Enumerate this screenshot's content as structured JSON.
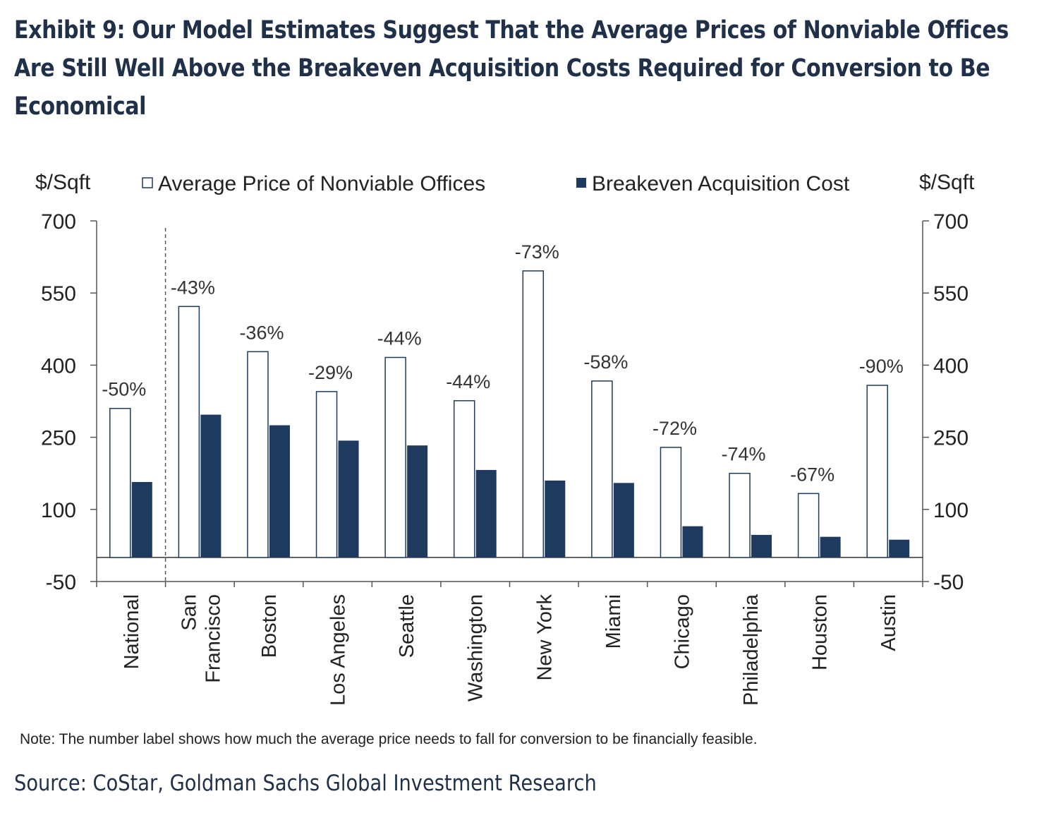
{
  "title_lines": [
    "Exhibit 9: Our Model Estimates Suggest That the Average Prices of Nonviable Offices",
    "Are Still Well Above the Breakeven Acquisition Costs Required for Conversion to Be",
    "Economical"
  ],
  "note": "Note: The number label shows how much the average price needs to fall for conversion to be financially feasible.",
  "source": "Source: CoStar, Goldman Sachs Global Investment Research",
  "colors": {
    "title": "#1f3048",
    "breakeven_bar": "#1f3a5f",
    "average_bar_fill": "#ffffff",
    "average_bar_stroke": "#1f3a5f"
  },
  "chart_data": {
    "type": "bar",
    "y_unit_left": "$/Sqft",
    "y_unit_right": "$/Sqft",
    "ylim": [
      -50,
      700
    ],
    "yticks": [
      -50,
      100,
      250,
      400,
      550,
      700
    ],
    "legend_position": "top",
    "categories": [
      "National",
      "San\nFrancisco",
      "Boston",
      "Los Angeles",
      "Seattle",
      "Washington",
      "New York",
      "Miami",
      "Chicago",
      "Philadelphia",
      "Houston",
      "Austin"
    ],
    "series": [
      {
        "name": "Average Price of Nonviable Offices",
        "values": [
          310,
          522,
          428,
          345,
          416,
          326,
          596,
          367,
          229,
          175,
          133,
          358
        ]
      },
      {
        "name": "Breakeven Acquisition Cost",
        "values": [
          157,
          297,
          275,
          243,
          233,
          182,
          160,
          155,
          65,
          47,
          43,
          37
        ]
      }
    ],
    "data_labels": [
      "-50%",
      "-43%",
      "-36%",
      "-29%",
      "-44%",
      "-44%",
      "-73%",
      "-58%",
      "-72%",
      "-74%",
      "-67%",
      "-90%"
    ],
    "separator_after_category": "National"
  }
}
